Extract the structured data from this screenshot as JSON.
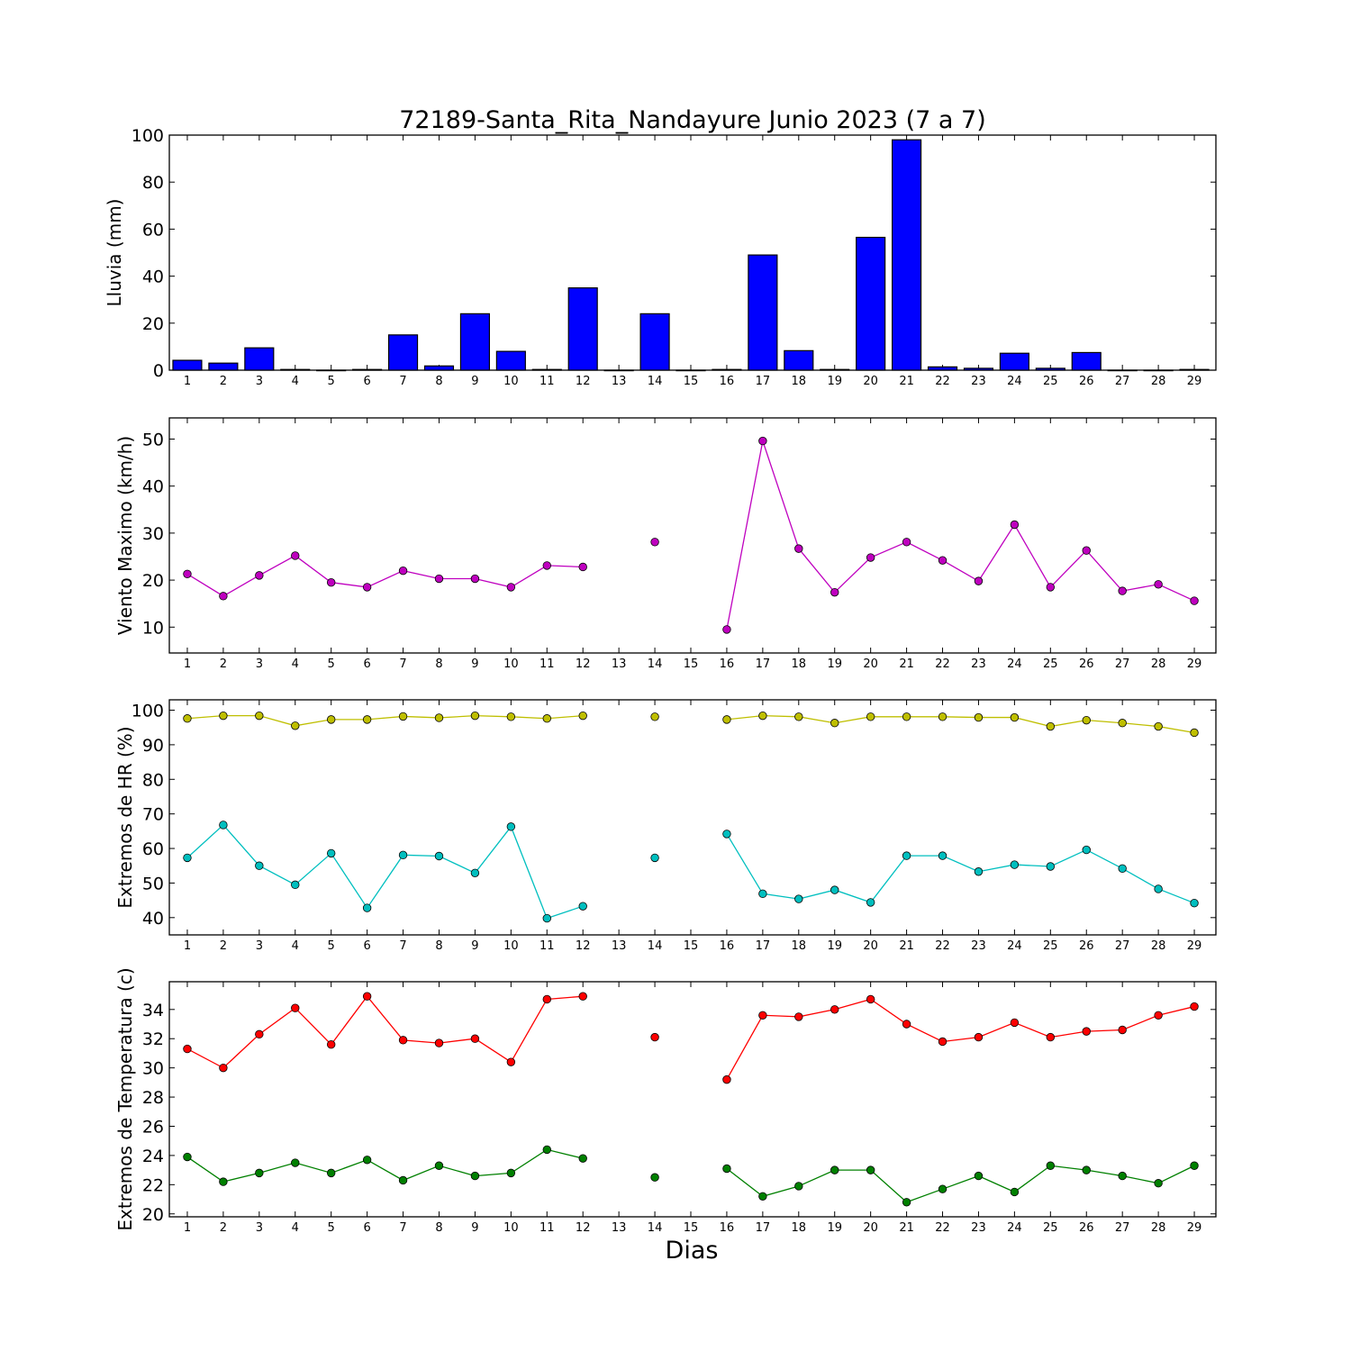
{
  "chart_data": {
    "title": "72189-Santa_Rita_Nandayure Junio 2023  (7 a 7)",
    "xlabel": "Dias",
    "days": [
      1,
      2,
      3,
      4,
      5,
      6,
      7,
      8,
      9,
      10,
      11,
      12,
      13,
      14,
      15,
      16,
      17,
      18,
      19,
      20,
      21,
      22,
      23,
      24,
      25,
      26,
      27,
      28,
      29
    ],
    "panels": [
      {
        "type": "bar",
        "ylabel": "Lluvia (mm)",
        "ylim": [
          0,
          100
        ],
        "yticks": [
          0,
          20,
          40,
          60,
          80,
          100
        ],
        "series": [
          {
            "color": "#0000ff",
            "values": [
              4.2,
              3.0,
              9.5,
              0.3,
              0,
              0.3,
              15.0,
              1.8,
              24.0,
              8.0,
              0.3,
              35.0,
              0,
              24.0,
              0,
              0.3,
              49.0,
              8.3,
              0.3,
              56.5,
              98.0,
              1.4,
              0.8,
              7.2,
              0.8,
              7.5,
              0,
              0,
              0.3
            ]
          }
        ]
      },
      {
        "type": "line",
        "ylabel": "Viento Maximo (km/h)",
        "ylim": [
          4.5,
          54.5
        ],
        "yticks": [
          10,
          20,
          30,
          40,
          50
        ],
        "series": [
          {
            "color": "#bf00bf",
            "values": [
              21.3,
              16.6,
              21.0,
              25.2,
              19.5,
              18.5,
              22.0,
              20.3,
              20.3,
              18.5,
              23.1,
              22.8,
              null,
              28.1,
              null,
              9.5,
              49.6,
              26.7,
              17.4,
              24.8,
              28.1,
              24.2,
              19.8,
              31.8,
              18.5,
              26.3,
              17.7,
              19.1,
              15.6
            ]
          }
        ]
      },
      {
        "type": "line",
        "ylabel": "Extremos de HR (%)",
        "ylim": [
          35,
          103
        ],
        "yticks": [
          40,
          50,
          60,
          70,
          80,
          90,
          100
        ],
        "series": [
          {
            "color": "#bfbf00",
            "values": [
              97.6,
              98.4,
              98.4,
              95.5,
              97.3,
              97.3,
              98.2,
              97.8,
              98.4,
              98.1,
              97.6,
              98.4,
              null,
              98.1,
              null,
              97.3,
              98.4,
              98.1,
              96.3,
              98.1,
              98.1,
              98.1,
              97.9,
              97.9,
              95.3,
              97.1,
              96.3,
              95.3,
              93.5
            ]
          },
          {
            "color": "#00bfbf",
            "values": [
              57.3,
              66.8,
              55.0,
              49.5,
              58.6,
              42.8,
              58.1,
              57.8,
              52.9,
              66.3,
              39.8,
              43.3,
              null,
              57.3,
              null,
              64.2,
              46.9,
              45.4,
              48.0,
              44.4,
              57.9,
              57.9,
              53.3,
              55.3,
              54.8,
              59.6,
              54.2,
              48.3,
              44.2
            ]
          }
        ]
      },
      {
        "type": "line",
        "ylabel": "Extremos de Temperatura (c)",
        "ylim": [
          19.8,
          35.9
        ],
        "yticks": [
          20,
          22,
          24,
          26,
          28,
          30,
          32,
          34
        ],
        "series": [
          {
            "color": "#ff0000",
            "values": [
              31.3,
              30.0,
              32.3,
              34.1,
              31.6,
              34.9,
              31.9,
              31.7,
              32.0,
              30.4,
              34.7,
              34.9,
              null,
              32.1,
              null,
              29.2,
              33.6,
              33.5,
              34.0,
              34.7,
              33.0,
              31.8,
              32.1,
              33.1,
              32.1,
              32.5,
              32.6,
              33.6,
              34.2
            ]
          },
          {
            "color": "#008000",
            "values": [
              23.9,
              22.2,
              22.8,
              23.5,
              22.8,
              23.7,
              22.3,
              23.3,
              22.6,
              22.8,
              24.4,
              23.8,
              null,
              22.5,
              null,
              23.1,
              21.2,
              21.9,
              23.0,
              23.0,
              20.8,
              21.7,
              22.6,
              21.5,
              23.3,
              23.0,
              22.6,
              22.1,
              23.3
            ]
          }
        ]
      }
    ]
  }
}
